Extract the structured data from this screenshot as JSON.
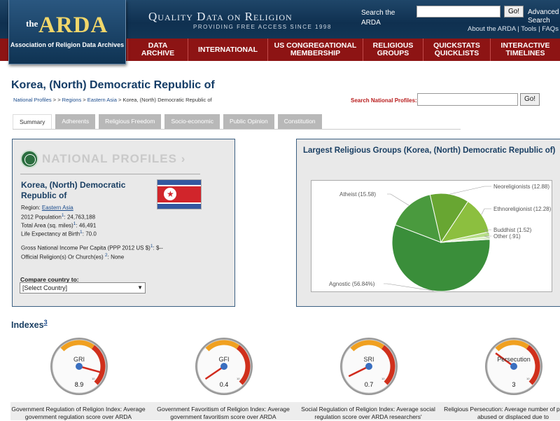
{
  "header": {
    "logo_the": "the",
    "logo_arda": "ARDA",
    "logo_sub": "Association of Religion Data Archives",
    "tagline": "Quality Data on Religion",
    "tagline_sub": "PROVIDING FREE ACCESS SINCE 1998",
    "search_label": "Search the ARDA",
    "search_value": "",
    "go_label": "Go!",
    "advanced_label": "Advanced Search",
    "links": [
      "About the ARDA",
      "Tools",
      "FAQs"
    ]
  },
  "nav": [
    {
      "label": "Data Archive"
    },
    {
      "label": "International"
    },
    {
      "label": "US Congregational Membership"
    },
    {
      "label": "Religious Groups"
    },
    {
      "label": "QuickStats QuickLists"
    },
    {
      "label": "Interactive Timelines"
    }
  ],
  "page": {
    "title": "Korea, (North) Democratic Republic of",
    "breadcrumb": [
      "National Profiles",
      ">",
      ">",
      "Regions",
      ">",
      "Eastern Asia",
      ">",
      "Korea, (North) Democratic Republic of"
    ],
    "search_profiles_label": "Search National Profiles:",
    "search_profiles_value": "",
    "go_label": "Go!"
  },
  "tabs": [
    "Summary",
    "Adherents",
    "Religious Freedom",
    "Socio-economic",
    "Public Opinion",
    "Constitution"
  ],
  "profile": {
    "heading": "NATIONAL PROFILES",
    "arrow": "›",
    "country": "Korea, (North) Democratic Republic of",
    "region_label": "Region:",
    "region": "Eastern Asia",
    "population_label": "2012 Population",
    "population": "24,763,188",
    "area_label": "Total Area (sq. miles)",
    "area": "46,491",
    "life_label": "Life Expectancy at Birth",
    "life": "70.0",
    "gni_label": "Gross National Income Per Capita (PPP 2012 US $)",
    "gni": "$--",
    "official_label": "Official Religion(s) Or Church(es)",
    "official": "None",
    "sup1": "1",
    "sup2": "2",
    "compare_label": "Compare country to:",
    "select_value": "[Select Country]"
  },
  "chart_title": "Largest Religious Groups (Korea, (North) Democratic Republic of)",
  "chart_data": {
    "type": "pie",
    "title": "Largest Religious Groups (Korea, (North) Democratic Republic of)",
    "slices": [
      {
        "label": "Agnostic",
        "value": 56.84,
        "color": "#3a8e3a"
      },
      {
        "label": "Atheist",
        "value": 15.58,
        "color": "#4a9a3e"
      },
      {
        "label": "Neoreligionists",
        "value": 12.88,
        "color": "#68a632"
      },
      {
        "label": "Ethnoreligionist",
        "value": 12.28,
        "color": "#8cbf3f"
      },
      {
        "label": "Buddhist",
        "value": 1.52,
        "color": "#b6de86"
      },
      {
        "label": "Other",
        "value": 0.91,
        "color": "#d9efc4"
      }
    ],
    "labels_text": [
      "Agnostic (56.84%)",
      "Atheist (15.58)",
      "Neoreligionists (12.88)",
      "Ethnoreligionist (12.28)",
      "Buddhist (1.52)",
      "Other (.91)"
    ]
  },
  "indexes": {
    "heading": "Indexes",
    "sup": "3",
    "items": [
      {
        "abbr": "GRI",
        "value": "8.9",
        "level": 8.9,
        "caption": "Government Regulation of Religion Index: Average government regulation score over ARDA"
      },
      {
        "abbr": "GFI",
        "value": "0.4",
        "level": 0.4,
        "caption": "Government Favoritism of Religion Index: Average government favoritism score over ARDA"
      },
      {
        "abbr": "SRI",
        "value": "0.7",
        "level": 0.7,
        "caption": "Social Regulation of Religion Index: Average social regulation score over ARDA researchers'"
      },
      {
        "abbr": "Persecution",
        "value": "3",
        "level": 3,
        "caption": "Religious Persecution: Average number of physically abused or displaced due to"
      }
    ],
    "scale_max": "10"
  }
}
